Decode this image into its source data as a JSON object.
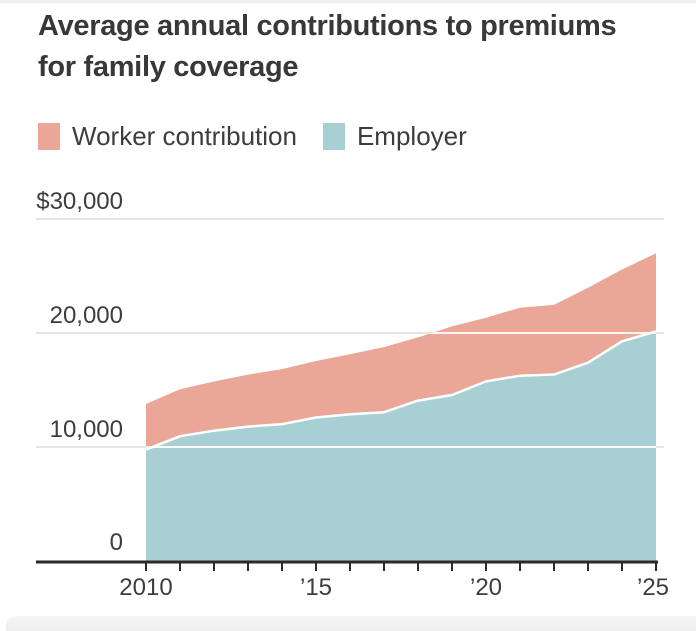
{
  "title": {
    "line1": "Average annual contributions to premiums",
    "line2": "for family coverage"
  },
  "legend": {
    "items": [
      {
        "label": "Worker contribution",
        "color": "#eaa696"
      },
      {
        "label": "Employer",
        "color": "#a8d0d4"
      }
    ]
  },
  "chart_data": {
    "type": "area",
    "stacked": true,
    "title": "Average annual contributions to premiums for family coverage",
    "x": [
      2010,
      2011,
      2012,
      2013,
      2014,
      2015,
      2016,
      2017,
      2018,
      2019,
      2020,
      2021,
      2022,
      2023,
      2024,
      2025
    ],
    "series": [
      {
        "name": "Employer",
        "color": "#a8d0d4",
        "values": [
          9773,
          10944,
          11429,
          11786,
          12011,
          12591,
          12865,
          13049,
          14069,
          14561,
          15754,
          16253,
          16357,
          17393,
          19276,
          20143
        ]
      },
      {
        "name": "Worker contribution",
        "color": "#eaa696",
        "values": [
          3997,
          4129,
          4316,
          4565,
          4823,
          4955,
          5277,
          5714,
          5547,
          6015,
          5588,
          5969,
          6106,
          6575,
          6296,
          6850
        ]
      }
    ],
    "ylim": [
      0,
      30000
    ],
    "ytick_labels": [
      "$30,000",
      "20,000",
      "10,000",
      "0"
    ],
    "ytick_values": [
      30000,
      20000,
      10000,
      0
    ],
    "xtick_labels": [
      "2010",
      "’15",
      "’20",
      "’25"
    ],
    "xtick_years": [
      2010,
      2015,
      2020,
      2025
    ],
    "grid": true,
    "legend_position": "top",
    "gridline_color": "#e4e4e4",
    "axis_color": "#2a2a2a",
    "series_separator_color": "#ffffff"
  }
}
